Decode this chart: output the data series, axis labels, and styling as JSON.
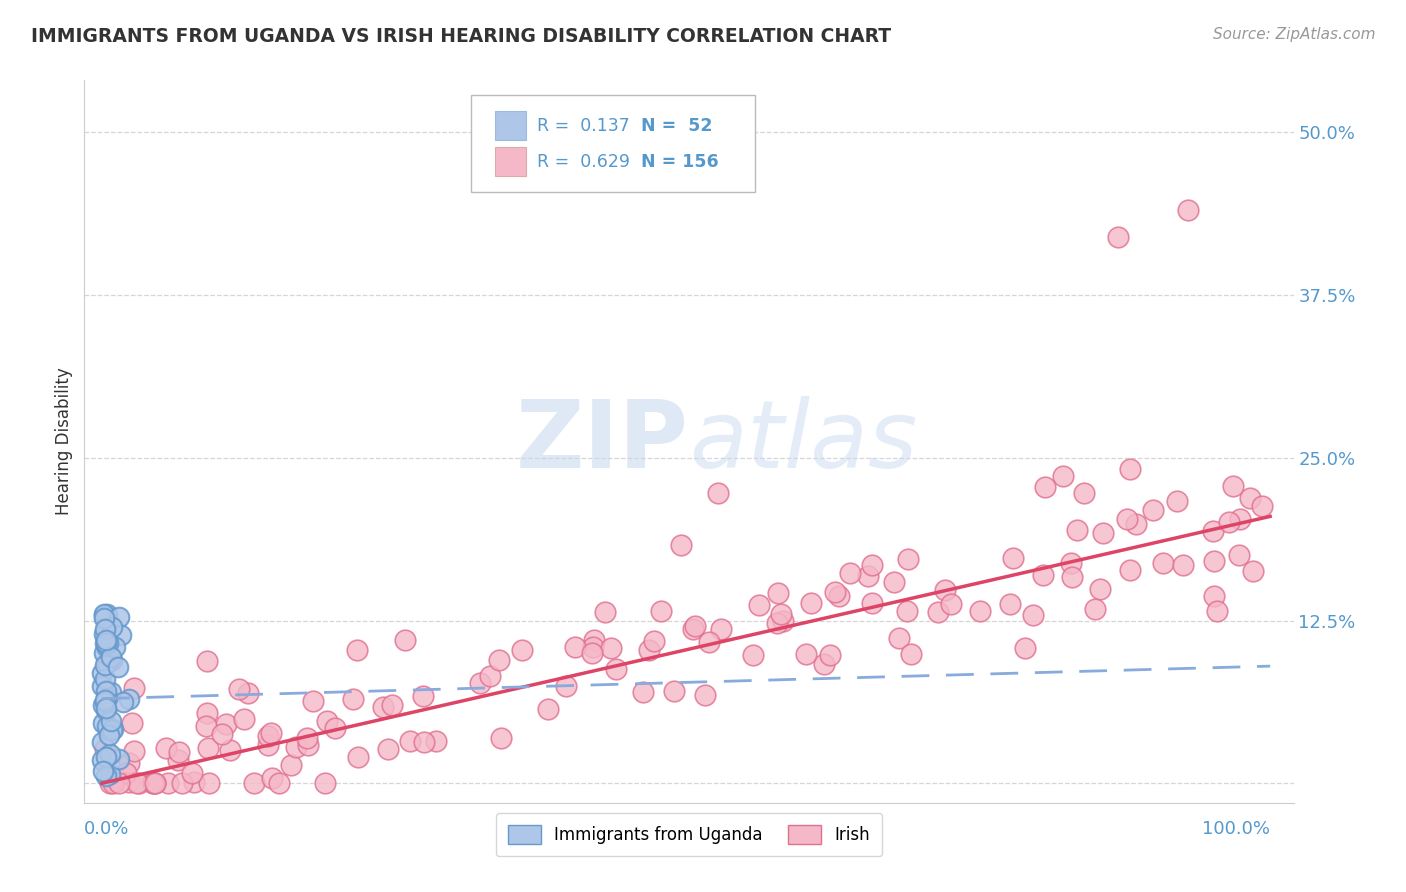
{
  "title": "IMMIGRANTS FROM UGANDA VS IRISH HEARING DISABILITY CORRELATION CHART",
  "source": "Source: ZipAtlas.com",
  "ylabel": "Hearing Disability",
  "legend_r1": "R =  0.137",
  "legend_n1": "N =  52",
  "legend_r2": "R =  0.629",
  "legend_n2": "N = 156",
  "blue_fill": "#aec6e8",
  "blue_edge": "#6699cc",
  "pink_fill": "#f5b8c8",
  "pink_edge": "#e07090",
  "blue_line_color": "#88aadd",
  "pink_line_color": "#dd4466",
  "grid_color": "#cccccc",
  "text_color": "#333333",
  "axis_label_color": "#5599cc",
  "background_color": "#ffffff",
  "ylim_max": 0.54,
  "xlim_max": 1.02
}
